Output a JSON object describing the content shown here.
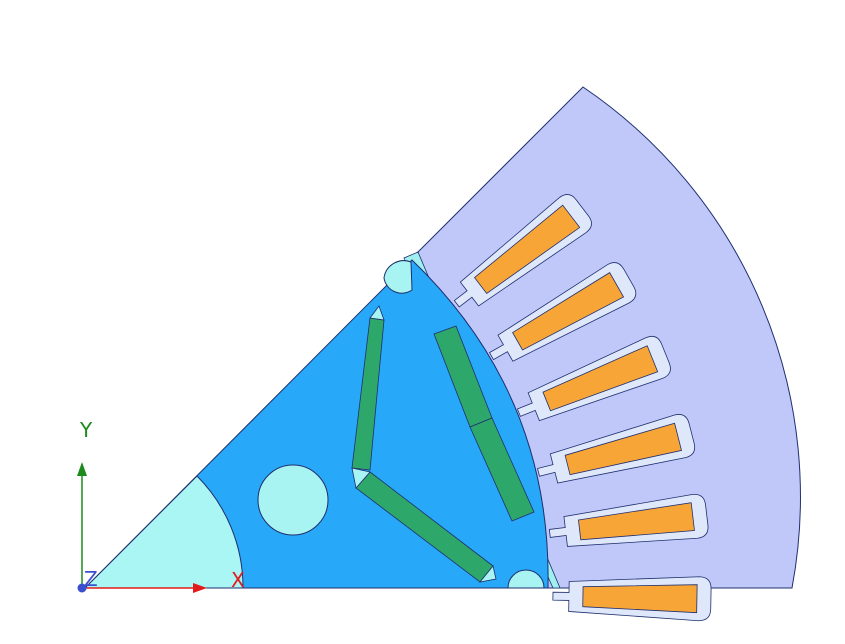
{
  "view": {
    "background": "#ffffff"
  },
  "triad": {
    "x_label": "X",
    "y_label": "Y",
    "z_label": "Z",
    "x_color": "#e11b1b",
    "y_color": "#1d8a1d",
    "z_color": "#3a4fd0"
  },
  "model": {
    "stator_color": "#bfc8f8",
    "slot_liner_color": "#dfe8fb",
    "winding_color": "#f7a537",
    "airgap_color": "#9ff0ee",
    "rotor_color": "#27a8f8",
    "hole_color": "#a8f4f2",
    "shaft_color": "#aaf6f4",
    "magnet_color": "#2ea86a",
    "outline_color": "#1f2f6f",
    "stator_slot_count": 6,
    "magnet_segment_count": 4
  }
}
